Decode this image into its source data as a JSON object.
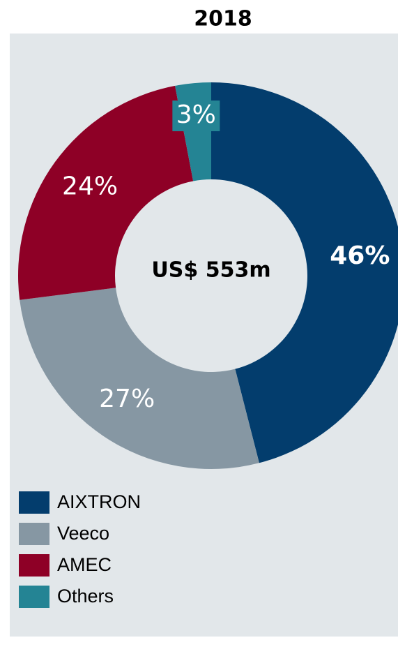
{
  "chart_data": {
    "type": "donut",
    "title": "2018",
    "center_label": "US$ 553m",
    "categories": [
      "AIXTRON",
      "Veeco",
      "AMEC",
      "Others"
    ],
    "values": [
      46,
      27,
      24,
      3
    ],
    "value_labels": [
      "46%",
      "27%",
      "24%",
      "3%"
    ],
    "colors": [
      "#033d6d",
      "#8697a3",
      "#8e0026",
      "#248494"
    ],
    "legend": "bottom-left"
  }
}
